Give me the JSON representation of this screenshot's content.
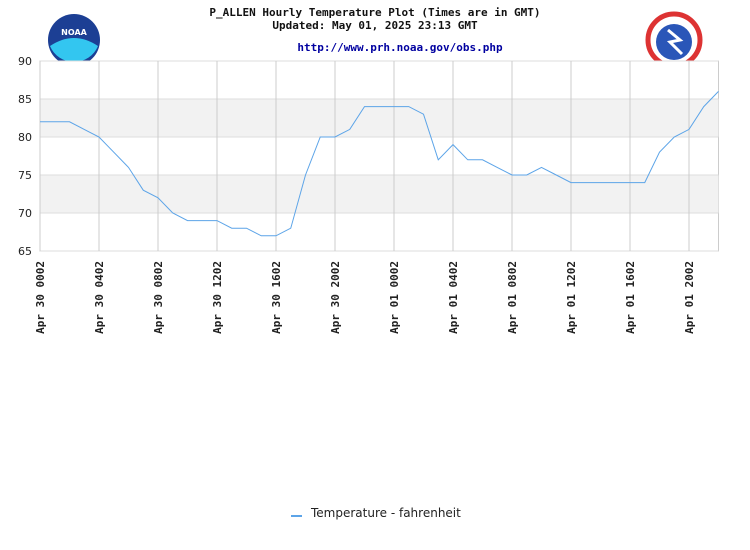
{
  "chart_data": {
    "type": "line",
    "title": "P_ALLEN Hourly Temperature Plot (Times are in GMT)",
    "subtitle": "Updated: May 01, 2025 23:13 GMT",
    "url": "http://www.prh.noaa.gov/obs.php",
    "categories": [
      "Apr 30 0002",
      null,
      null,
      null,
      "Apr 30 0402",
      null,
      null,
      null,
      "Apr 30 0802",
      null,
      null,
      null,
      "Apr 30 1202",
      null,
      null,
      null,
      "Apr 30 1602",
      null,
      null,
      null,
      "Apr 30 2002",
      null,
      null,
      null,
      "Apr 01 0002",
      null,
      null,
      null,
      "Apr 01 0402",
      null,
      null,
      null,
      "Apr 01 0802",
      null,
      null,
      null,
      "Apr 01 1202",
      null,
      null,
      null,
      "Apr 01 1602",
      null,
      null,
      null,
      "Apr 01 2002",
      null,
      null
    ],
    "series": [
      {
        "name": "Temperature - fahrenheit",
        "color": "#5ca4e8",
        "values": [
          82,
          82,
          82,
          81,
          80,
          78,
          76,
          73,
          72,
          70,
          69,
          69,
          69,
          68,
          68,
          67,
          67,
          68,
          75,
          80,
          80,
          81,
          84,
          84,
          84,
          84,
          83,
          77,
          79,
          77,
          77,
          76,
          75,
          75,
          76,
          75,
          74,
          74,
          74,
          74,
          74,
          74,
          78,
          80,
          81,
          84,
          86
        ]
      }
    ],
    "ylim": [
      65,
      90
    ],
    "yticks": [
      65,
      70,
      75,
      80,
      85,
      90
    ],
    "grid": true,
    "legend": "bottom"
  }
}
